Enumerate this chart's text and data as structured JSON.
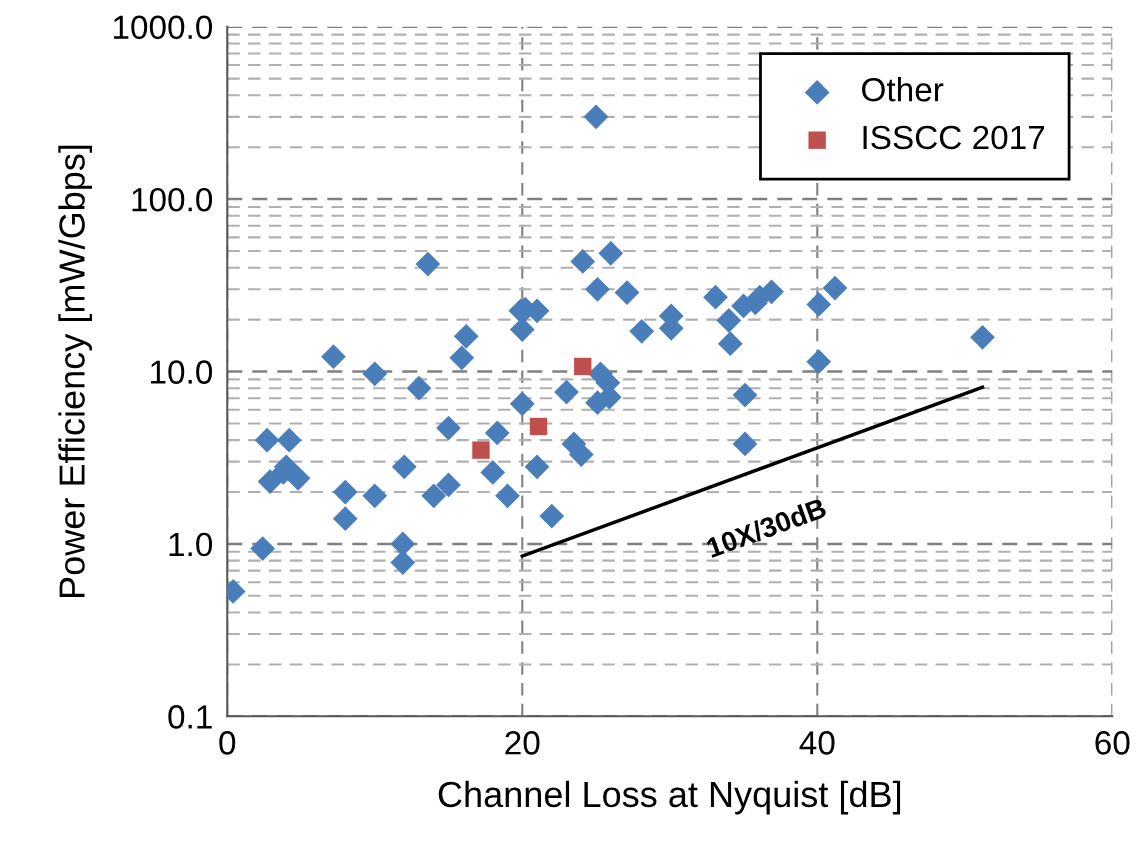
{
  "chart_data": {
    "type": "scatter",
    "xlabel": "Channel Loss at Nyquist [dB]",
    "ylabel": "Power Efficiency [mW/Gbps]",
    "log": "y",
    "xlim": [
      0,
      60
    ],
    "xticks": [
      0,
      20,
      40,
      60
    ],
    "ylim": [
      0.1,
      1000
    ],
    "yticks": [
      {
        "value": 0.1,
        "label": "0.1"
      },
      {
        "value": 1,
        "label": "1.0"
      },
      {
        "value": 10,
        "label": "10.0"
      },
      {
        "value": 100,
        "label": "100.0"
      },
      {
        "value": 1000,
        "label": "1000.0"
      }
    ],
    "grid": true,
    "legend": "top right",
    "annotations": [
      "10X/30dB"
    ],
    "series": [
      {
        "name": "Other",
        "color": "#4a7ebb",
        "marker": "diamond",
        "x": [
          0.4,
          2.4,
          2.7,
          2.9,
          3.8,
          4.2,
          4.8,
          4.0,
          7.2,
          8.0,
          8.0,
          10.0,
          10.0,
          11.9,
          11.9,
          12.0,
          13.0,
          13.6,
          14.0,
          15.0,
          15.0,
          15.9,
          16.2,
          18.0,
          18.3,
          19.0,
          20.0,
          19.9,
          20.2,
          21.0,
          20.0,
          21.0,
          22.0,
          23.0,
          23.5,
          24.0,
          24.1,
          25.0,
          25.1,
          26.0,
          25.1,
          25.3,
          25.8,
          25.9,
          27.1,
          28.1,
          30.1,
          30.1,
          33.1,
          34.0,
          34.1,
          35.1,
          35.1,
          35.0,
          35.8,
          36.1,
          36.9,
          40.1,
          40.1,
          41.2,
          51.2
        ],
        "values": [
          0.53,
          0.94,
          4.0,
          2.3,
          2.6,
          4.0,
          2.4,
          2.8,
          12.2,
          2.0,
          1.4,
          9.7,
          1.9,
          1.0,
          0.78,
          2.8,
          8.0,
          42,
          1.9,
          2.2,
          4.7,
          12,
          16,
          2.6,
          4.4,
          1.9,
          17.5,
          22.5,
          23,
          22.5,
          6.5,
          2.8,
          1.45,
          7.6,
          3.8,
          3.3,
          43.5,
          300,
          30,
          48.5,
          6.6,
          9.7,
          8.6,
          7.1,
          28.7,
          17.1,
          21,
          17.8,
          27,
          19.8,
          14.5,
          7.3,
          3.8,
          24,
          25,
          27,
          29,
          24.5,
          11.4,
          30.5,
          15.8
        ]
      },
      {
        "name": "ISSCC 2017",
        "color": "#c0504d",
        "marker": "square",
        "x": [
          17.2,
          21.1,
          24.1
        ],
        "values": [
          3.5,
          4.8,
          10.7
        ]
      },
      {
        "type": "line",
        "color": "#000000",
        "x": [
          20,
          51.2
        ],
        "values": [
          0.85,
          8.1
        ]
      }
    ]
  }
}
